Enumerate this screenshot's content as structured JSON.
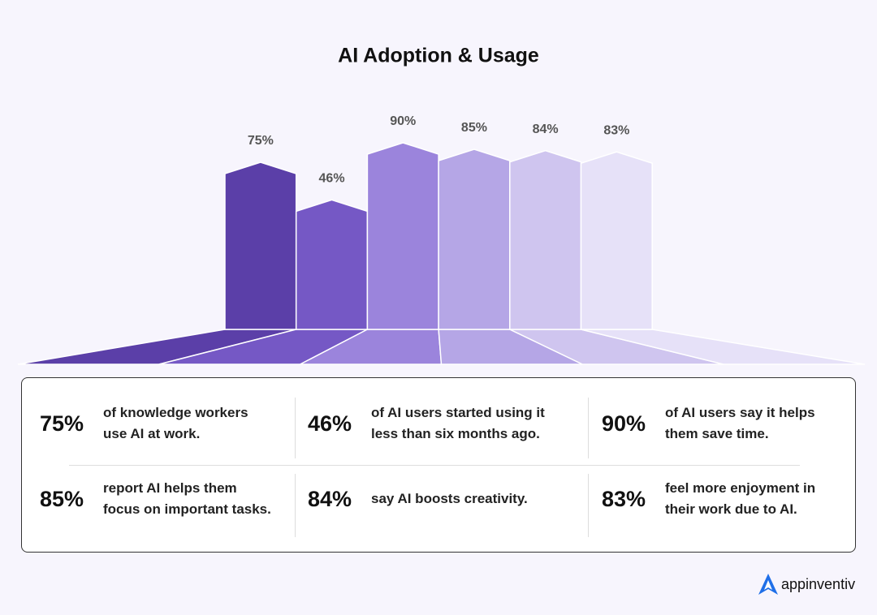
{
  "chart_data": {
    "type": "bar",
    "title": "AI Adoption & Usage",
    "values": [
      75,
      46,
      90,
      85,
      84,
      83
    ],
    "value_labels": [
      "75%",
      "46%",
      "90%",
      "85%",
      "84%",
      "83%"
    ],
    "colors": [
      "#5b3fa8",
      "#7558c5",
      "#9b84dc",
      "#b5a6e6",
      "#cfc5ef",
      "#e6e1f8"
    ]
  },
  "stats": [
    {
      "figure": "75%",
      "lines": [
        "of knowledge workers",
        "use AI at work."
      ]
    },
    {
      "figure": "46%",
      "lines": [
        "of AI users started using it",
        "less than six months ago."
      ]
    },
    {
      "figure": "90%",
      "lines": [
        "of AI users say it helps",
        "them save time."
      ]
    },
    {
      "figure": "85%",
      "lines": [
        "report AI helps them",
        "focus on important tasks."
      ]
    },
    {
      "figure": "84%",
      "lines": [
        "say AI boosts creativity."
      ]
    },
    {
      "figure": "83%",
      "lines": [
        "feel more enjoyment in",
        "their work due to AI."
      ]
    }
  ],
  "brand": "appinventiv"
}
